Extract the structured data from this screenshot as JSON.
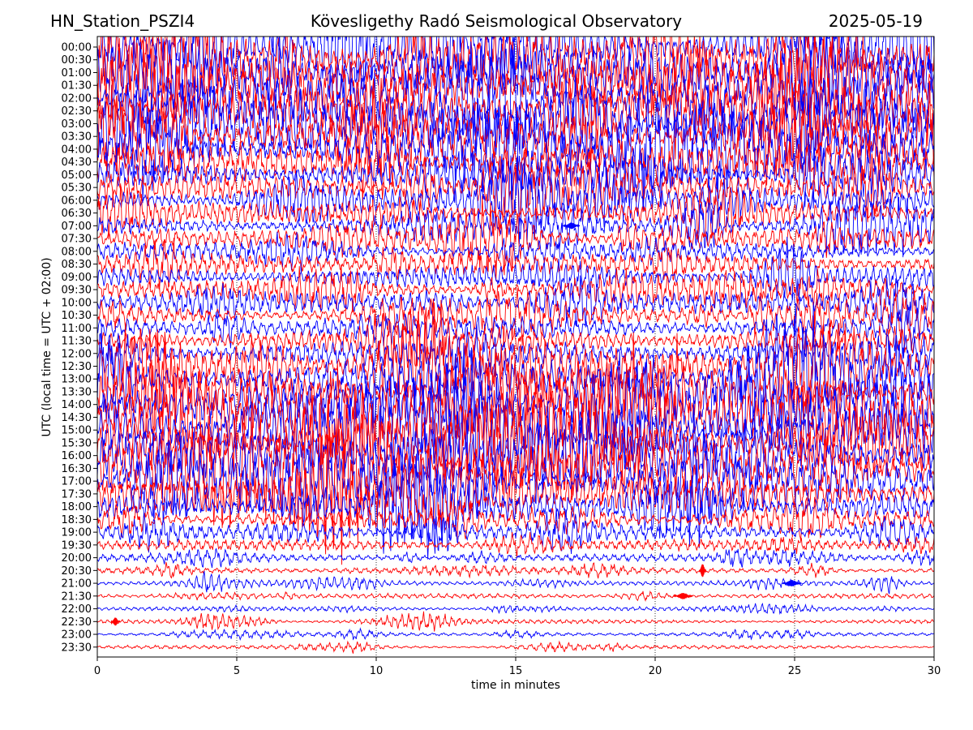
{
  "header": {
    "station": "HN_Station_PSZI4",
    "observatory": "Kövesligethy Radó Seismological Observatory",
    "date": "2025-05-19"
  },
  "chart_data": {
    "type": "line",
    "title": "Kövesligethy Radó Seismological Observatory",
    "xlabel": "time in minutes",
    "ylabel": "UTC (local time = UTC + 02:00)",
    "xlim": [
      0,
      30
    ],
    "x_ticks": [
      "0",
      "5",
      "10",
      "15",
      "20",
      "25",
      "30"
    ],
    "vertical_gridlines_at": [
      5,
      10,
      15,
      20,
      25
    ],
    "grid": "vertical dotted",
    "row_labels": [
      "00:00",
      "00:30",
      "01:00",
      "01:30",
      "02:00",
      "02:30",
      "03:00",
      "03:30",
      "04:00",
      "04:30",
      "05:00",
      "05:30",
      "06:00",
      "06:30",
      "07:00",
      "07:30",
      "08:00",
      "08:30",
      "09:00",
      "09:30",
      "10:00",
      "10:30",
      "11:00",
      "11:30",
      "12:00",
      "12:30",
      "13:00",
      "13:30",
      "14:00",
      "14:30",
      "15:00",
      "15:30",
      "16:00",
      "16:30",
      "17:00",
      "17:30",
      "18:00",
      "18:30",
      "19:00",
      "19:30",
      "20:00",
      "20:30",
      "21:00",
      "21:30",
      "22:00",
      "22:30",
      "23:00",
      "23:30"
    ],
    "trace_colors": [
      "#0000ff",
      "#ff0000"
    ],
    "relative_activity": [
      1.0,
      1.0,
      1.0,
      1.0,
      1.0,
      0.95,
      0.9,
      0.9,
      0.85,
      0.8,
      0.7,
      0.6,
      0.55,
      0.5,
      0.45,
      0.5,
      0.45,
      0.5,
      0.5,
      0.45,
      0.5,
      0.45,
      0.55,
      0.6,
      0.65,
      0.75,
      0.85,
      0.9,
      0.95,
      1.0,
      1.0,
      1.0,
      1.0,
      1.0,
      0.9,
      0.8,
      0.6,
      0.45,
      0.35,
      0.25,
      0.15,
      0.08,
      0.06,
      0.05,
      0.03,
      0.03,
      0.01,
      0.005
    ]
  }
}
